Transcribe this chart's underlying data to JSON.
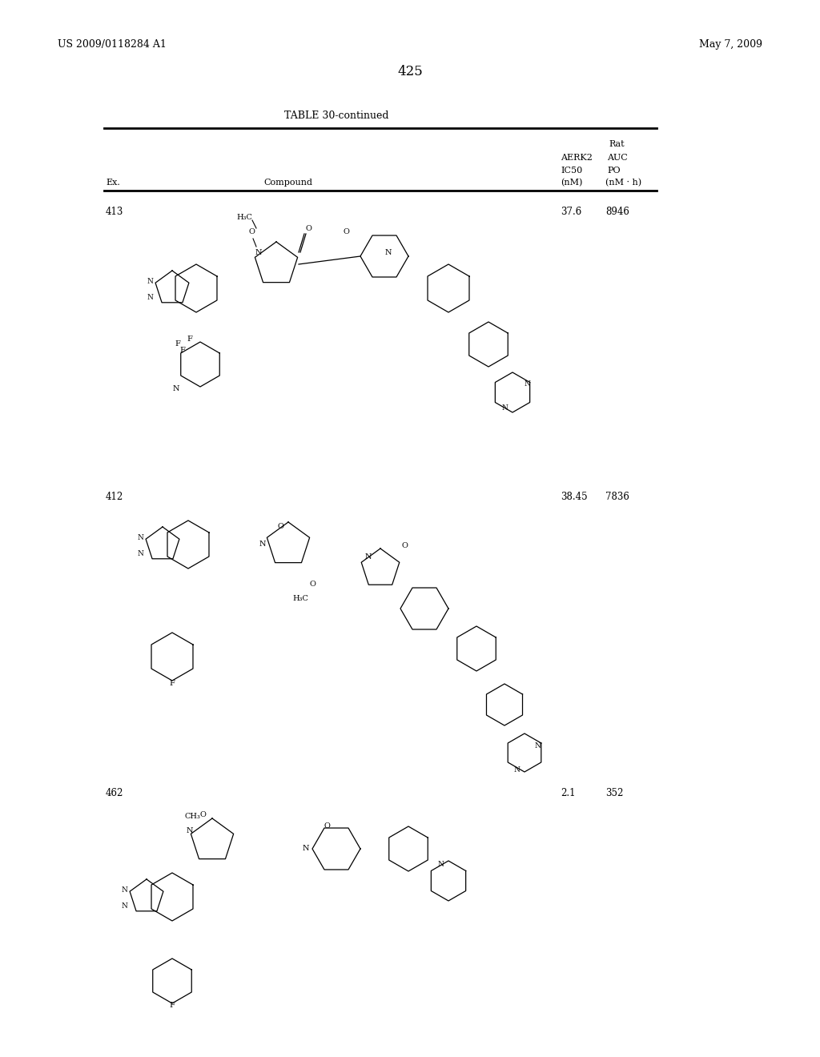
{
  "background_color": "#ffffff",
  "page_number": "425",
  "header_left": "US 2009/0118284 A1",
  "header_right": "May 7, 2009",
  "table_title": "TABLE 30-continued",
  "col_headers": {
    "ex": "Ex.",
    "compound": "Compound",
    "aerk2_ic50": "AERK2\nIC50\n(nM)",
    "rat_auc_po": "Rat\nAUC\nPO\n(nM · h)"
  },
  "rows": [
    {
      "ex": "413",
      "aerk2_ic50": "37.6",
      "rat_auc_po": "8946"
    },
    {
      "ex": "412",
      "aerk2_ic50": "38.45",
      "rat_auc_po": "7836"
    },
    {
      "ex": "462",
      "aerk2_ic50": "2.1",
      "rat_auc_po": "352"
    }
  ],
  "figsize": [
    10.24,
    13.2
  ],
  "dpi": 100
}
